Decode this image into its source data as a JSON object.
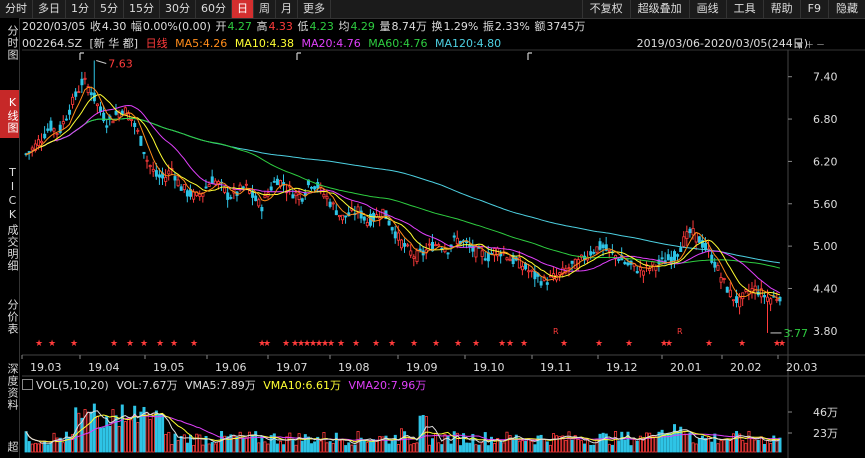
{
  "toolbar": {
    "periods": [
      "分时",
      "多日",
      "1分",
      "5分",
      "15分",
      "30分",
      "60分",
      "日",
      "周",
      "月",
      "更多"
    ],
    "active_period": "日",
    "right": [
      "不复权",
      "超级叠加",
      "画线",
      "工具",
      "帮助",
      "F9",
      "隐藏"
    ]
  },
  "sidebar": {
    "tabs": [
      "分时图",
      "K线图",
      "TICK",
      "成交明细",
      "分价表",
      "深度资料",
      "超"
    ],
    "active": "K线图"
  },
  "quote": {
    "date": "2020/03/05",
    "close_label": "收",
    "close": "4.30",
    "change_label": "幅",
    "change": "0.00%(0.00)",
    "open_label": "开",
    "open": "4.27",
    "high_label": "高",
    "high": "4.33",
    "low_label": "低",
    "low": "4.23",
    "avg_label": "均",
    "avg": "4.29",
    "volume_label": "量",
    "volume": "8.74万",
    "turnover_label": "换",
    "turnover": "1.29%",
    "amplitude_label": "振",
    "amplitude": "2.33%",
    "amount_label": "额",
    "amount": "3745万"
  },
  "legend": {
    "code": "002264.SZ",
    "name": "[新 华 都]",
    "kline": "日线",
    "ma5": "MA5:4.26",
    "ma10": "MA10:4.38",
    "ma20": "MA20:4.76",
    "ma60": "MA60:4.76",
    "ma120": "MA120:4.80",
    "range": "2019/03/06-2020/03/05(244日)"
  },
  "volume_legend": {
    "name": "VOL(5,10,20)",
    "vol": "VOL:7.67万",
    "vma5": "VMA5:7.89万",
    "vma10": "VMA10:6.61万",
    "vma20": "VMA20:7.96万"
  },
  "colors": {
    "up": "#ff3b3b",
    "down": "#2ec4e6",
    "ma5": "#ff8c1a",
    "ma10": "#ffff33",
    "ma20": "#e040fb",
    "ma60": "#2ecc40",
    "ma120": "#4dd0e1"
  },
  "annotations": {
    "high": "7.63",
    "low": "3.77"
  },
  "chart_data": {
    "type": "candlestick",
    "ylim": [
      3.5,
      7.75
    ],
    "y_ticks": [
      "7.40",
      "6.80",
      "6.20",
      "5.60",
      "5.00",
      "4.40",
      "3.80"
    ],
    "x_ticks": [
      "19.03",
      "19.04",
      "19.05",
      "19.06",
      "19.07",
      "19.08",
      "19.09",
      "19.10",
      "19.11",
      "19.12",
      "20.01",
      "20.02",
      "20.03"
    ],
    "volume_ticks": [
      "46万",
      "23万"
    ],
    "close_path": [
      6.3,
      6.4,
      6.55,
      6.7,
      6.6,
      6.85,
      7.1,
      7.35,
      7.2,
      6.95,
      6.75,
      6.85,
      6.95,
      6.8,
      6.55,
      6.2,
      6.0,
      5.95,
      6.1,
      5.85,
      5.75,
      5.7,
      5.8,
      5.95,
      5.85,
      5.7,
      5.75,
      5.85,
      5.7,
      5.55,
      5.8,
      5.95,
      5.85,
      5.75,
      5.7,
      5.9,
      5.85,
      5.7,
      5.55,
      5.4,
      5.45,
      5.5,
      5.35,
      5.4,
      5.5,
      5.3,
      5.1,
      4.95,
      4.85,
      4.9,
      5.0,
      5.05,
      4.95,
      5.1,
      5.05,
      4.95,
      4.9,
      4.85,
      4.95,
      4.9,
      4.8,
      4.75,
      4.65,
      4.55,
      4.5,
      4.55,
      4.6,
      4.7,
      4.75,
      4.85,
      4.95,
      5.0,
      4.9,
      4.85,
      4.75,
      4.7,
      4.65,
      4.7,
      4.75,
      4.8,
      4.85,
      5.05,
      5.2,
      5.1,
      4.95,
      4.75,
      4.5,
      4.3,
      4.2,
      4.35,
      4.4,
      4.3,
      4.25,
      4.3
    ]
  }
}
